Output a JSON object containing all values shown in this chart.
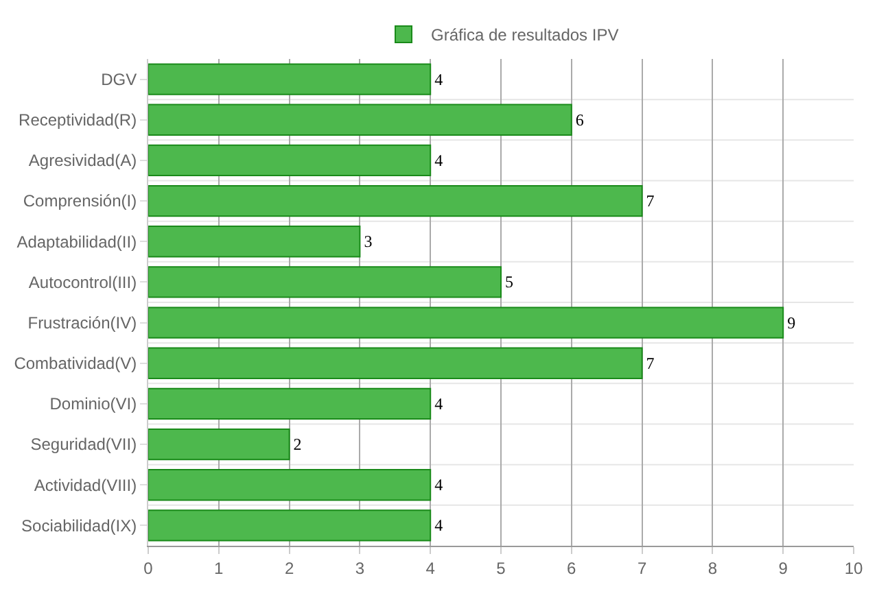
{
  "chart_data": {
    "type": "bar",
    "orientation": "horizontal",
    "categories": [
      "DGV",
      "Receptividad(R)",
      "Agresividad(A)",
      "Comprensión(I)",
      "Adaptabilidad(II)",
      "Autocontrol(III)",
      "Frustración(IV)",
      "Combatividad(V)",
      "Dominio(VI)",
      "Seguridad(VII)",
      "Actividad(VIII)",
      "Sociabilidad(IX)"
    ],
    "series": [
      {
        "name": "Gráfica de resultados IPV",
        "color": "#4db84d",
        "values": [
          4,
          6,
          4,
          7,
          3,
          5,
          9,
          7,
          4,
          2,
          4,
          4
        ]
      }
    ],
    "xlim": [
      0,
      10
    ],
    "xticks": [
      0,
      1,
      2,
      3,
      4,
      5,
      6,
      7,
      8,
      9,
      10
    ],
    "grid": true,
    "legend": "top",
    "data_labels": true
  }
}
